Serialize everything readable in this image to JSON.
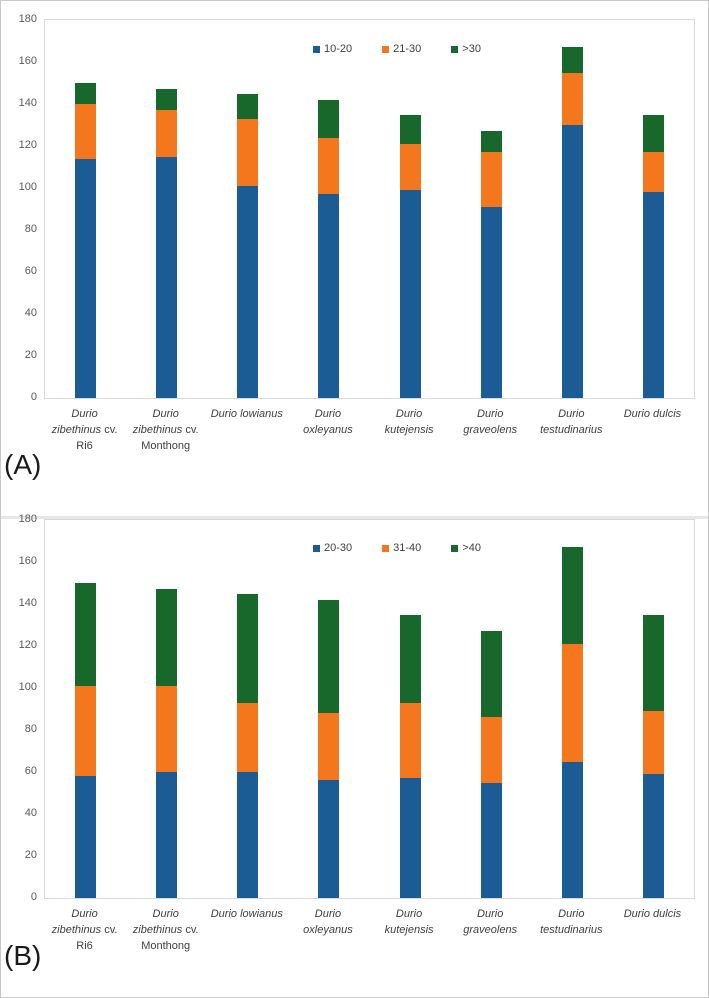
{
  "chart_data": [
    {
      "type": "bar",
      "stacked": true,
      "panel_label": "(A)",
      "title": "",
      "xlabel": "",
      "ylabel": "",
      "ylim": [
        0,
        180
      ],
      "yticks": [
        0,
        20,
        40,
        60,
        80,
        100,
        120,
        140,
        160,
        180
      ],
      "grid": false,
      "legend_position": "top-center",
      "categories": [
        "Durio zibethinus cv. Ri6",
        "Durio zibethinus cv. Monthong",
        "Durio lowianus",
        "Durio oxleyanus",
        "Durio kutejensis",
        "Durio graveolens",
        "Durio testudinarius",
        "Durio dulcis"
      ],
      "category_label_lines": [
        [
          [
            {
              "t": "Durio",
              "i": true
            }
          ],
          [
            {
              "t": "zibethinus",
              "i": true
            },
            {
              "t": " cv.",
              "i": false
            }
          ],
          [
            {
              "t": "Ri6",
              "i": false
            }
          ]
        ],
        [
          [
            {
              "t": "Durio",
              "i": true
            }
          ],
          [
            {
              "t": "zibethinus",
              "i": true
            },
            {
              "t": " cv.",
              "i": false
            }
          ],
          [
            {
              "t": "Monthong",
              "i": false
            }
          ]
        ],
        [
          [
            {
              "t": "Durio lowianus",
              "i": true
            }
          ]
        ],
        [
          [
            {
              "t": "Durio",
              "i": true
            }
          ],
          [
            {
              "t": "oxleyanus",
              "i": true
            }
          ]
        ],
        [
          [
            {
              "t": "Durio",
              "i": true
            }
          ],
          [
            {
              "t": "kutejensis",
              "i": true
            }
          ]
        ],
        [
          [
            {
              "t": "Durio",
              "i": true
            }
          ],
          [
            {
              "t": "graveolens",
              "i": true
            }
          ]
        ],
        [
          [
            {
              "t": "Durio",
              "i": true
            }
          ],
          [
            {
              "t": "testudinarius",
              "i": true
            }
          ]
        ],
        [
          [
            {
              "t": "Durio dulcis",
              "i": true
            }
          ]
        ]
      ],
      "series": [
        {
          "name": "10-20",
          "color": "#1B5C94",
          "values": [
            114,
            115,
            101,
            97,
            99,
            91,
            130,
            98
          ]
        },
        {
          "name": "21-30",
          "color": "#F4771E",
          "values": [
            26,
            22,
            32,
            27,
            22,
            26,
            25,
            19
          ]
        },
        {
          "name": ">30",
          "color": "#17682A",
          "values": [
            10,
            10,
            12,
            18,
            14,
            10,
            12,
            18
          ]
        }
      ],
      "stack_totals": [
        150,
        147,
        145,
        142,
        135,
        127,
        167,
        135
      ]
    },
    {
      "type": "bar",
      "stacked": true,
      "panel_label": "(B)",
      "title": "",
      "xlabel": "",
      "ylabel": "",
      "ylim": [
        0,
        180
      ],
      "yticks": [
        0,
        20,
        40,
        60,
        80,
        100,
        120,
        140,
        160,
        180
      ],
      "grid": false,
      "legend_position": "top-center",
      "categories": [
        "Durio zibethinus cv. Ri6",
        "Durio zibethinus cv. Monthong",
        "Durio lowianus",
        "Durio oxleyanus",
        "Durio kutejensis",
        "Durio graveolens",
        "Durio testudinarius",
        "Durio dulcis"
      ],
      "category_label_lines": [
        [
          [
            {
              "t": "Durio",
              "i": true
            }
          ],
          [
            {
              "t": "zibethinus",
              "i": true
            },
            {
              "t": " cv.",
              "i": false
            }
          ],
          [
            {
              "t": "Ri6",
              "i": false
            }
          ]
        ],
        [
          [
            {
              "t": "Durio",
              "i": true
            }
          ],
          [
            {
              "t": "zibethinus",
              "i": true
            },
            {
              "t": " cv.",
              "i": false
            }
          ],
          [
            {
              "t": "Monthong",
              "i": false
            }
          ]
        ],
        [
          [
            {
              "t": "Durio lowianus",
              "i": true
            }
          ]
        ],
        [
          [
            {
              "t": "Durio",
              "i": true
            }
          ],
          [
            {
              "t": "oxleyanus",
              "i": true
            }
          ]
        ],
        [
          [
            {
              "t": "Durio",
              "i": true
            }
          ],
          [
            {
              "t": "kutejensis",
              "i": true
            }
          ]
        ],
        [
          [
            {
              "t": "Durio",
              "i": true
            }
          ],
          [
            {
              "t": "graveolens",
              "i": true
            }
          ]
        ],
        [
          [
            {
              "t": "Durio",
              "i": true
            }
          ],
          [
            {
              "t": "testudinarius",
              "i": true
            }
          ]
        ],
        [
          [
            {
              "t": "Durio dulcis",
              "i": true
            }
          ]
        ]
      ],
      "series": [
        {
          "name": "20-30",
          "color": "#1B5C94",
          "values": [
            58,
            60,
            60,
            56,
            57,
            55,
            65,
            59
          ]
        },
        {
          "name": "31-40",
          "color": "#F4771E",
          "values": [
            43,
            41,
            33,
            32,
            36,
            31,
            56,
            30
          ]
        },
        {
          "name": ">40",
          "color": "#17682A",
          "values": [
            49,
            46,
            52,
            54,
            42,
            41,
            46,
            46
          ]
        }
      ],
      "stack_totals": [
        150,
        147,
        145,
        142,
        135,
        127,
        167,
        135
      ]
    }
  ]
}
